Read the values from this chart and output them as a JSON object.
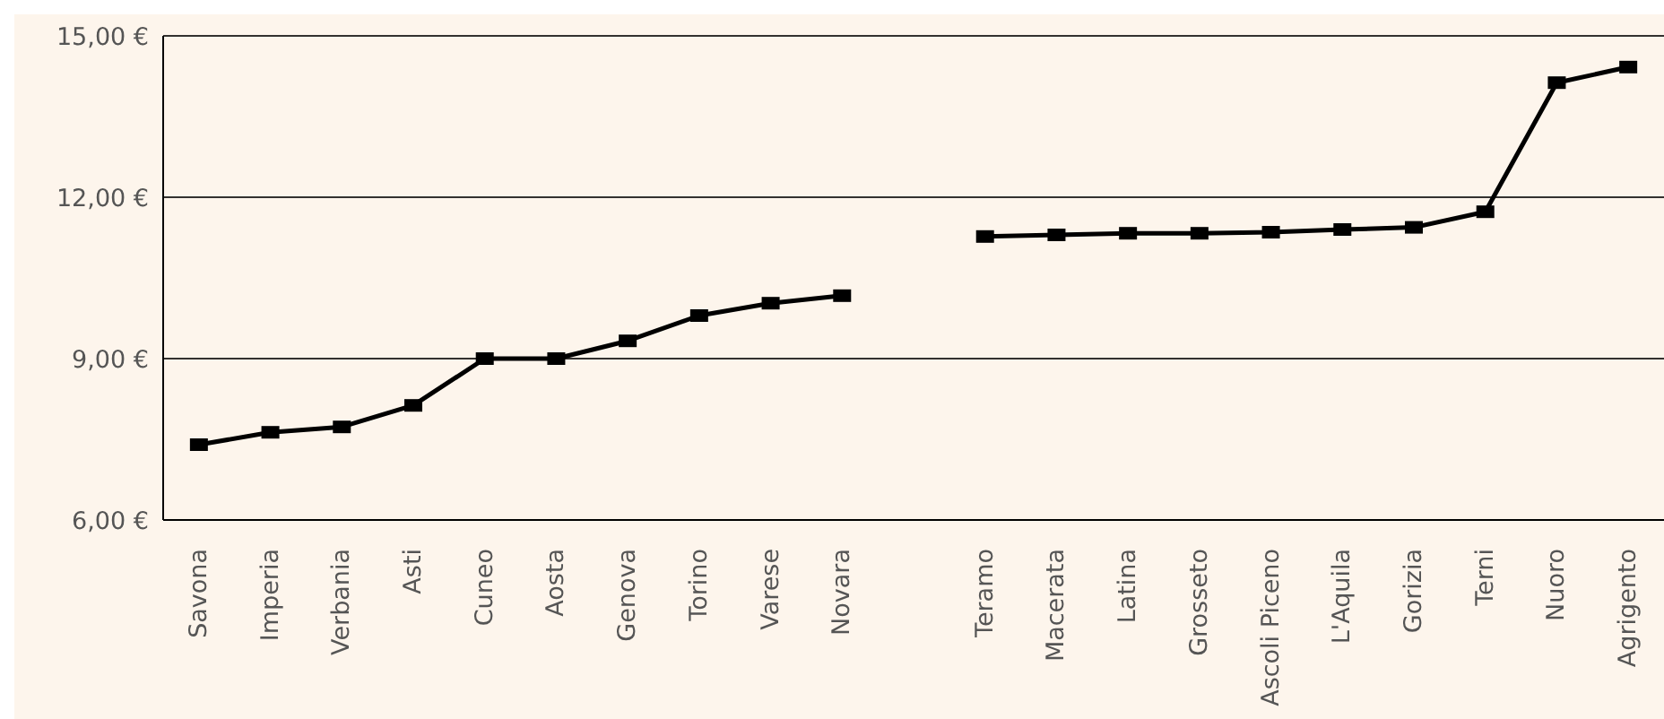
{
  "chart_data": {
    "type": "line",
    "categories": [
      "Savona",
      "Imperia",
      "Verbania",
      "Asti",
      "Cuneo",
      "Aosta",
      "Genova",
      "Torino",
      "Varese",
      "Novara",
      null,
      "Teramo",
      "Macerata",
      "Latina",
      "Grosseto",
      "Ascoli Piceno",
      "L'Aquila",
      "Gorizia",
      "Terni",
      "Nuoro",
      "Agrigento"
    ],
    "series": [
      {
        "color": "#000000",
        "values": [
          7.4,
          7.63,
          7.73,
          8.13,
          9.0,
          9.0,
          9.33,
          9.8,
          10.03,
          10.17,
          null,
          11.27,
          11.3,
          11.33,
          11.33,
          11.35,
          11.4,
          11.44,
          11.73,
          14.13,
          14.42
        ]
      }
    ],
    "ylim": [
      6,
      15
    ],
    "yticks": [
      {
        "value": 6,
        "label": "6,00 €"
      },
      {
        "value": 9,
        "label": "9,00 €"
      },
      {
        "value": 12,
        "label": "12,00 €"
      },
      {
        "value": 15,
        "label": "15,00 €"
      }
    ],
    "grid": "y",
    "marker": "square",
    "line_style": "solid"
  }
}
